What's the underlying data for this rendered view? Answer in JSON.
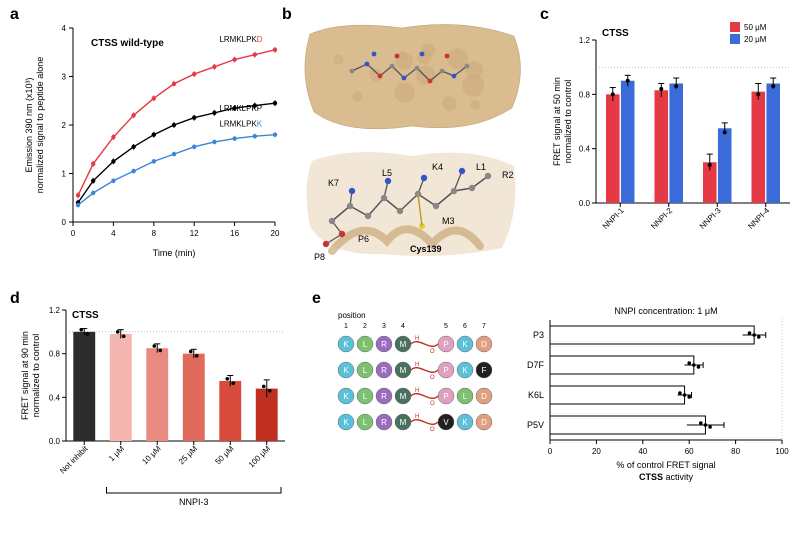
{
  "panels": {
    "a": "a",
    "b": "b",
    "c": "c",
    "d": "d",
    "e": "e"
  },
  "panel_a": {
    "title": "CTSS wild-type",
    "xlabel": "Time (min)",
    "ylabel": "Emission 390 nm (x10³)\nnormalized signal to peptide alone",
    "xlim": [
      0,
      20
    ],
    "xticks": [
      0,
      4,
      8,
      12,
      16,
      20
    ],
    "ylim": [
      0,
      4
    ],
    "yticks": [
      0,
      1,
      2,
      3,
      4
    ],
    "series": [
      {
        "name": "LRMKLPKD",
        "color": "#e63946",
        "x": [
          0.5,
          2,
          4,
          6,
          8,
          10,
          12,
          14,
          16,
          18,
          20
        ],
        "y": [
          0.55,
          1.2,
          1.75,
          2.2,
          2.55,
          2.85,
          3.05,
          3.2,
          3.35,
          3.45,
          3.55
        ],
        "err": 0.06
      },
      {
        "name": "LRMKLPKP",
        "color": "#000000",
        "x": [
          0.5,
          2,
          4,
          6,
          8,
          10,
          12,
          14,
          16,
          18,
          20
        ],
        "y": [
          0.4,
          0.85,
          1.25,
          1.55,
          1.8,
          2.0,
          2.15,
          2.25,
          2.35,
          2.4,
          2.45
        ],
        "err": 0.06
      },
      {
        "name": "LRMKLPKK",
        "color": "#3a86d8",
        "x": [
          0.5,
          2,
          4,
          6,
          8,
          10,
          12,
          14,
          16,
          18,
          20
        ],
        "y": [
          0.35,
          0.6,
          0.85,
          1.05,
          1.25,
          1.4,
          1.55,
          1.65,
          1.72,
          1.77,
          1.8
        ],
        "err": 0.05
      }
    ],
    "label_fontsize": 9,
    "tick_fontsize": 8,
    "title_fontsize": 10
  },
  "panel_b": {
    "surface_color": "#d9b98c",
    "labels": [
      "K7",
      "L5",
      "K4",
      "L1",
      "R2",
      "M3",
      "P6",
      "P8",
      "Cys139"
    ],
    "atom_colors": {
      "C": "#888888",
      "N": "#3355cc",
      "O": "#cc3333",
      "S": "#e0d030"
    }
  },
  "panel_c": {
    "title": "CTSS",
    "ylabel": "FRET signal at 50 min\nnormalized to control",
    "ylim": [
      0,
      1.2
    ],
    "yticks": [
      0,
      0.4,
      0.8,
      1.2
    ],
    "ref_line": 1.0,
    "categories": [
      "NNPI-1",
      "NNPI-2",
      "NNPI-3",
      "NNPI-4"
    ],
    "series": [
      {
        "name": "50 μM",
        "color": "#e63946",
        "values": [
          0.8,
          0.83,
          0.3,
          0.82
        ],
        "err": [
          0.05,
          0.05,
          0.06,
          0.06
        ]
      },
      {
        "name": "20 μM",
        "color": "#3a6bd8",
        "values": [
          0.9,
          0.88,
          0.55,
          0.88
        ],
        "err": [
          0.04,
          0.04,
          0.04,
          0.04
        ]
      }
    ],
    "dots": [
      [
        0.8,
        0.9
      ],
      [
        0.84,
        0.86
      ],
      [
        0.28,
        0.52
      ],
      [
        0.8,
        0.86
      ]
    ],
    "label_fontsize": 9,
    "tick_fontsize": 8
  },
  "panel_d": {
    "title": "CTSS",
    "ylabel": "FRET signal at 90 min\nnormalized to control",
    "ylim": [
      0,
      1.2
    ],
    "yticks": [
      0,
      0.4,
      0.8,
      1.2
    ],
    "ref_line": 1.0,
    "categories": [
      "Not inhibit",
      "1 μM",
      "10 μM",
      "25 μM",
      "50 μM",
      "100 μM"
    ],
    "colors": [
      "#2b2b2b",
      "#f5b5b0",
      "#e88a80",
      "#e06a5c",
      "#d84a3c",
      "#c03020"
    ],
    "values": [
      1.0,
      0.98,
      0.85,
      0.8,
      0.55,
      0.48
    ],
    "err": [
      0.03,
      0.04,
      0.04,
      0.04,
      0.05,
      0.08
    ],
    "bracket_label": "NNPI-3",
    "label_fontsize": 9,
    "tick_fontsize": 8
  },
  "panel_e": {
    "pos_header": "position",
    "positions": [
      "1",
      "2",
      "3",
      "4",
      "5",
      "6",
      "7"
    ],
    "rows": [
      {
        "letters": [
          "K",
          "L",
          "R",
          "M",
          "P",
          "K",
          "D"
        ],
        "name": "P3"
      },
      {
        "letters": [
          "K",
          "L",
          "R",
          "M",
          "P",
          "K",
          "F"
        ],
        "name": "D7F"
      },
      {
        "letters": [
          "K",
          "L",
          "R",
          "M",
          "P",
          "L",
          "D"
        ],
        "name": "K6L"
      },
      {
        "letters": [
          "K",
          "L",
          "R",
          "M",
          "V",
          "K",
          "D"
        ],
        "name": "P5V"
      }
    ],
    "circle_colors": {
      "K": "#5cc0d8",
      "L": "#7cc070",
      "R": "#9b6bc0",
      "M": "#4a7060",
      "P": "#e0a0c0",
      "D": "#e0a080",
      "F": "#202020",
      "V": "#202020"
    },
    "linker_color": "#c03020",
    "legend": "NNPI concentration: 1 μM",
    "xlabel": "% of control FRET signal\nCTSS activity",
    "xlim": [
      0,
      100
    ],
    "xticks": [
      0,
      20,
      40,
      60,
      80,
      100
    ],
    "ref_line": 100,
    "bars": [
      {
        "name": "P3",
        "value": 88,
        "err": 5
      },
      {
        "name": "D7F",
        "value": 62,
        "err": 4
      },
      {
        "name": "K6L",
        "value": 58,
        "err": 3
      },
      {
        "name": "P5V",
        "value": 67,
        "err": 8
      }
    ],
    "bar_fill": "#ffffff",
    "bar_stroke": "#000000",
    "label_fontsize": 9,
    "tick_fontsize": 8
  }
}
